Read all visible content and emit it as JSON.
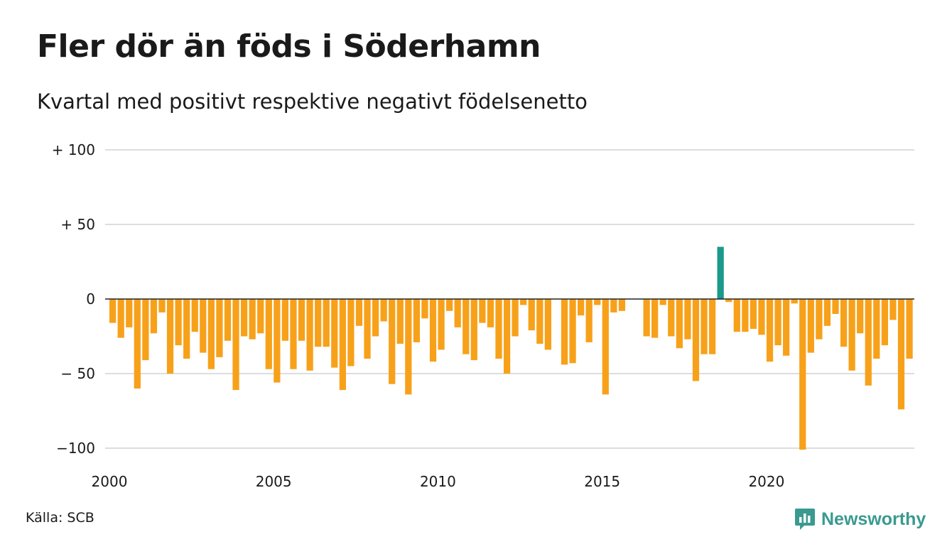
{
  "title": "Fler dör än föds i Söderhamn",
  "subtitle": "Kvartal med positivt respektive negativt födelsenetto",
  "source": "Källa: SCB",
  "brand": {
    "name": "Newsworthy",
    "icon": "chart-bubble-icon",
    "color": "#3a9a8f"
  },
  "chart_data": {
    "type": "bar",
    "start_year": 2000,
    "start_quarter": 1,
    "ylim": [
      -100,
      100
    ],
    "y_ticks": [
      {
        "value": 100,
        "label": "+ 100"
      },
      {
        "value": 50,
        "label": "+  50"
      },
      {
        "value": 0,
        "label": "0"
      },
      {
        "value": -50,
        "label": "− 50"
      },
      {
        "value": -100,
        "label": "−100"
      }
    ],
    "x_ticks": [
      2000,
      2005,
      2010,
      2015,
      2020
    ],
    "colors": {
      "positive": "#1a9a8a",
      "negative": "#f7a11a",
      "grid": "#dddddd",
      "zero": "#222222"
    },
    "values": [
      -16,
      -26,
      -19,
      -60,
      -41,
      -23,
      -9,
      -50,
      -31,
      -40,
      -22,
      -36,
      -47,
      -39,
      -28,
      -61,
      -25,
      -27,
      -23,
      -47,
      -56,
      -28,
      -47,
      -28,
      -48,
      -32,
      -32,
      -46,
      -61,
      -45,
      -18,
      -40,
      -25,
      -15,
      -57,
      -30,
      -64,
      -29,
      -13,
      -42,
      -34,
      -8,
      -19,
      -37,
      -41,
      -16,
      -19,
      -40,
      -50,
      -25,
      -4,
      -21,
      -30,
      -34,
      0,
      -44,
      -43,
      -11,
      -29,
      -4,
      -64,
      -9,
      -8,
      0,
      0,
      -25,
      -26,
      -4,
      -25,
      -33,
      -27,
      -55,
      -37,
      -37,
      35,
      -2,
      -22,
      -22,
      -20,
      -24,
      -42,
      -31,
      -38,
      -3,
      -101,
      -36,
      -27,
      -18,
      -10,
      -32,
      -48,
      -23,
      -58,
      -40,
      -31,
      -14,
      -74,
      -40
    ]
  }
}
